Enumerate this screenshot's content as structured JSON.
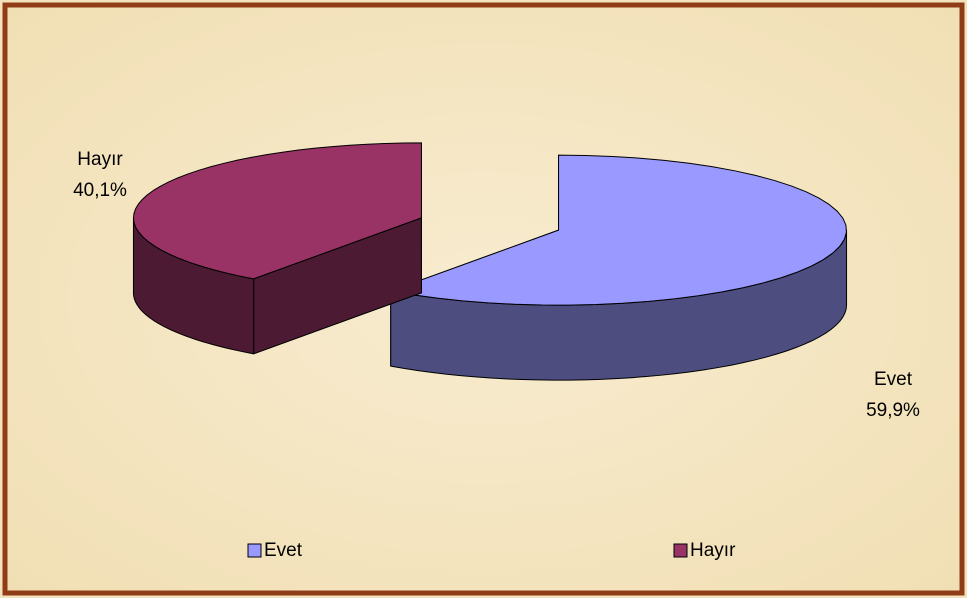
{
  "chart_data": {
    "type": "pie",
    "categories": [
      "Evet",
      "Hayır"
    ],
    "values": [
      59.9,
      40.1
    ],
    "value_labels": [
      "59,9%",
      "40,1%"
    ],
    "colors": [
      "#9999ff",
      "#993366"
    ],
    "legend": "bottom"
  }
}
